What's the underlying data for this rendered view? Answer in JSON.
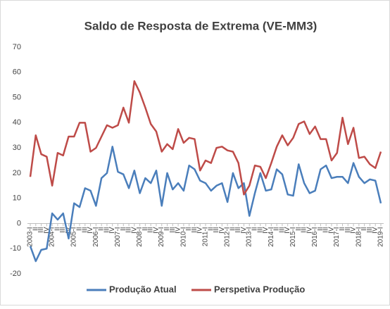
{
  "chart_data": {
    "type": "line",
    "title": "Saldo de Resposta de Extrema (VE-MM3)",
    "categories": [
      "2003-I",
      "II",
      "III",
      "IV",
      "2004-I",
      "II",
      "III",
      "IV",
      "2005-I",
      "II",
      "III",
      "IV",
      "2006-I",
      "II",
      "III",
      "IV",
      "2007-I",
      "II",
      "III",
      "IV",
      "2008-I",
      "II",
      "III",
      "IV",
      "2009-I",
      "II",
      "III",
      "IV",
      "2010-I",
      "II",
      "III",
      "IV",
      "2011-I",
      "II",
      "III",
      "IV",
      "2012-I",
      "II",
      "III",
      "IV",
      "2013-I",
      "II",
      "III",
      "IV",
      "2014-I",
      "II",
      "III",
      "IV",
      "2015-I",
      "II",
      "III",
      "IV",
      "2016-I",
      "II",
      "III",
      "IV",
      "2017-I",
      "II",
      "III",
      "IV",
      "2018-I",
      "II",
      "III",
      "IV",
      "2019-I"
    ],
    "series": [
      {
        "name": "Produção Atual",
        "color": "#4a7ebb",
        "values": [
          -9,
          -15,
          -10.5,
          -10,
          4,
          1.5,
          4,
          -6,
          8,
          6.5,
          14,
          13,
          7,
          18,
          20,
          30.5,
          20.5,
          19.5,
          14,
          21,
          12,
          18,
          16,
          21,
          7,
          20,
          13.5,
          16,
          13,
          23,
          21.5,
          17,
          16,
          13,
          15,
          16,
          8.5,
          20,
          14,
          16,
          3,
          12,
          20,
          13,
          13.5,
          21.5,
          19.5,
          11.5,
          11,
          23.5,
          16,
          12,
          13,
          21.5,
          23,
          18,
          18.5,
          18.5,
          16,
          24,
          18.5,
          16,
          17.5,
          17,
          8
        ]
      },
      {
        "name": "Perspetiva Produção",
        "color": "#be4b48",
        "values": [
          18.5,
          35,
          27.5,
          26.5,
          15,
          28,
          27,
          34.5,
          34.5,
          40,
          40,
          28.5,
          30,
          34.5,
          39,
          38,
          39,
          46,
          40,
          56.5,
          52,
          46,
          39.5,
          36.5,
          28.5,
          31.5,
          29.5,
          37.5,
          32,
          34,
          33.5,
          21,
          25,
          24,
          30,
          30.5,
          29,
          28.5,
          24,
          11.5,
          15,
          23,
          22.5,
          18,
          24,
          30.5,
          35,
          31,
          34,
          39.5,
          40.5,
          35.5,
          38.5,
          33.5,
          33.5,
          25,
          28,
          42,
          31.5,
          38,
          26,
          26.5,
          23.5,
          22,
          28.5
        ]
      }
    ],
    "ylim": [
      -20,
      70
    ],
    "yticks": [
      -20,
      -10,
      0,
      10,
      20,
      30,
      40,
      50,
      60,
      70
    ],
    "grid": false,
    "legend": "bottom"
  }
}
